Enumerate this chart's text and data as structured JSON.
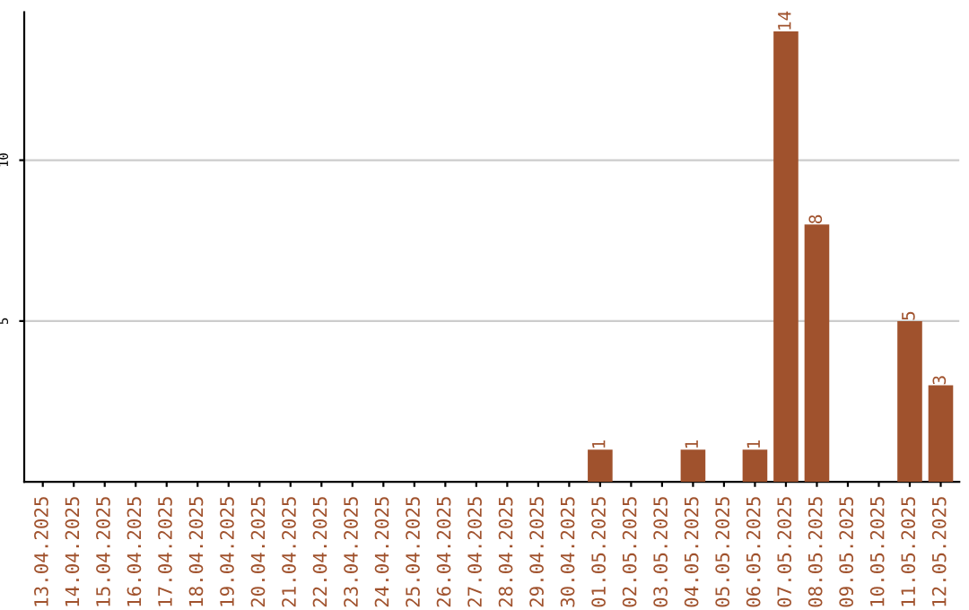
{
  "chart_data": {
    "type": "bar",
    "categories": [
      "13.04.2025",
      "14.04.2025",
      "15.04.2025",
      "16.04.2025",
      "17.04.2025",
      "18.04.2025",
      "19.04.2025",
      "20.04.2025",
      "21.04.2025",
      "22.04.2025",
      "23.04.2025",
      "24.04.2025",
      "25.04.2025",
      "26.04.2025",
      "27.04.2025",
      "28.04.2025",
      "29.04.2025",
      "30.04.2025",
      "01.05.2025",
      "02.05.2025",
      "03.05.2025",
      "04.05.2025",
      "05.05.2025",
      "06.05.2025",
      "07.05.2025",
      "08.05.2025",
      "09.05.2025",
      "10.05.2025",
      "11.05.2025",
      "12.05.2025"
    ],
    "values": [
      0,
      0,
      0,
      0,
      0,
      0,
      0,
      0,
      0,
      0,
      0,
      0,
      0,
      0,
      0,
      0,
      0,
      0,
      1,
      0,
      0,
      1,
      0,
      1,
      14,
      8,
      0,
      0,
      5,
      3
    ],
    "value_labels": [
      null,
      null,
      null,
      null,
      null,
      null,
      null,
      null,
      null,
      null,
      null,
      null,
      null,
      null,
      null,
      null,
      null,
      null,
      "1",
      null,
      null,
      "1",
      null,
      "1",
      "14",
      "8",
      null,
      null,
      "5",
      "3"
    ],
    "color": "#a0522d",
    "ylim": [
      0,
      14.6
    ],
    "yticks": [
      5,
      10
    ],
    "grid": "y"
  }
}
